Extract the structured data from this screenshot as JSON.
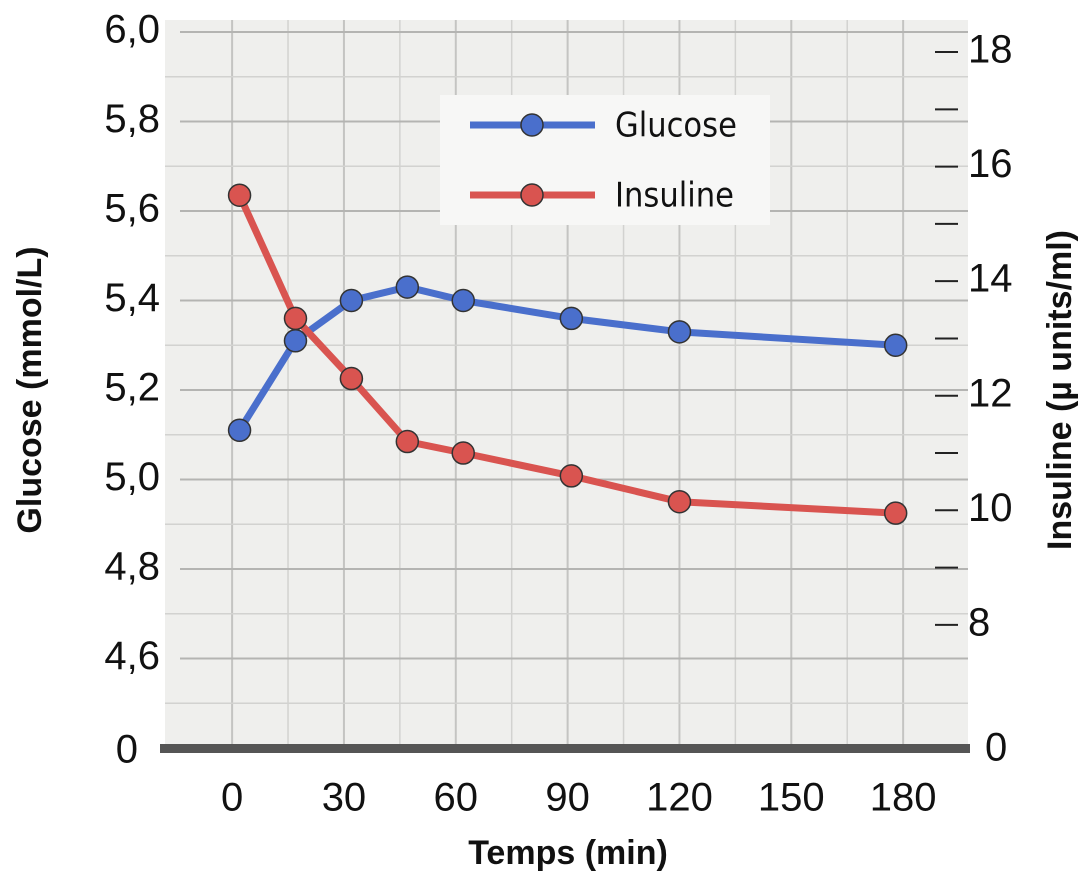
{
  "chart_data": {
    "type": "line",
    "x_label": "Temps (min)",
    "y_label": "Glucose (mmol/L)",
    "y2_label": "Insuline (µ units/ml)",
    "x": [
      2,
      17,
      32,
      47,
      62,
      91,
      120,
      178
    ],
    "series": [
      {
        "name": "Glucose",
        "color": "#4a6fcc",
        "values": [
          5.11,
          5.31,
          5.4,
          5.43,
          5.4,
          5.36,
          5.33,
          5.3
        ]
      },
      {
        "name": "Insuline",
        "color": "#d95450",
        "axis": "y2",
        "values": [
          15.5,
          13.35,
          12.3,
          11.2,
          11.0,
          10.6,
          10.15,
          9.95
        ]
      }
    ],
    "xlim": [
      -18,
      197.4
    ],
    "xticks": [
      0,
      30,
      60,
      90,
      120,
      150,
      180
    ],
    "xminorticks": [
      15,
      45,
      75,
      105,
      135,
      165
    ],
    "ylim": [
      4.4,
      6.0
    ],
    "yticks": [
      {
        "value": 4.6,
        "label": "4,6"
      },
      {
        "value": 4.8,
        "label": "4,8"
      },
      {
        "value": 5.0,
        "label": "5,0"
      },
      {
        "value": 5.2,
        "label": "5,2"
      },
      {
        "value": 5.4,
        "label": "5,4"
      },
      {
        "value": 5.6,
        "label": "5,6"
      },
      {
        "value": 5.8,
        "label": "5,8"
      },
      {
        "value": 6.0,
        "label": "6,0"
      }
    ],
    "yminorticks": [
      4.5,
      4.7,
      4.9,
      5.1,
      5.3,
      5.5,
      5.7,
      5.9
    ],
    "y_break_label": "0",
    "y2lim": [
      5.85,
      18.35
    ],
    "y2ticks": [
      8,
      10,
      12,
      14,
      16,
      18
    ],
    "y2minorticks": [
      9,
      11,
      13,
      15,
      17
    ],
    "y2_break_label": "0",
    "grid": true
  }
}
